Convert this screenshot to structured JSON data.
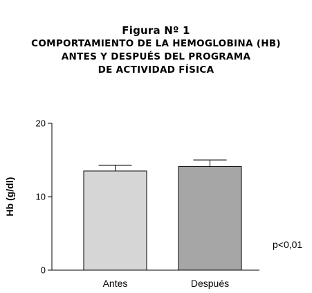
{
  "figure": {
    "label": "Figura Nº 1",
    "title_lines": [
      "COMPORTAMIENTO DE LA HEMOGLOBINA (HB)",
      "ANTES Y DESPUÉS DEL  PROGRAMA",
      "DE ACTIVIDAD FÍSICA"
    ]
  },
  "chart_data": {
    "type": "bar",
    "categories": [
      "Antes",
      "Después"
    ],
    "values": [
      13.5,
      14.1
    ],
    "error_upper": [
      14.3,
      15.0
    ],
    "bar_colors": [
      "#d6d6d6",
      "#a6a6a6"
    ],
    "ylabel": "Hb (g/dl)",
    "xlabel": "",
    "ylim": [
      0,
      20
    ],
    "yticks": [
      "0",
      "10",
      "20"
    ],
    "grid": false,
    "annotation": "p<0,01"
  }
}
